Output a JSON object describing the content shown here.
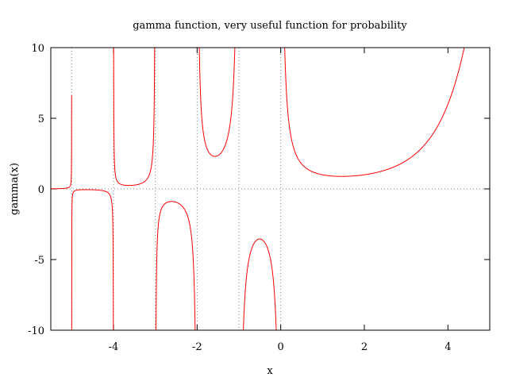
{
  "chart_data": {
    "type": "line",
    "title": "gamma function, very useful function for probability",
    "xlabel": "x",
    "ylabel": "gamma(x)",
    "xlim": [
      -5.5,
      5
    ],
    "ylim": [
      -10,
      10
    ],
    "x_ticks": [
      -4,
      -2,
      0,
      2,
      4
    ],
    "y_ticks": [
      -10,
      -5,
      0,
      5,
      10
    ],
    "x_tick_labels": [
      "-4",
      "-2",
      "0",
      "2",
      "4"
    ],
    "y_tick_labels": [
      "-10",
      "-5",
      "0",
      "5",
      "10"
    ],
    "grid": {
      "zero_lines": true,
      "asymptotes_at": [
        -5,
        -4,
        -3,
        -2,
        -1,
        0
      ],
      "style": "dotted"
    },
    "series": [
      {
        "function": "gamma",
        "color": "#ff0000"
      }
    ]
  }
}
